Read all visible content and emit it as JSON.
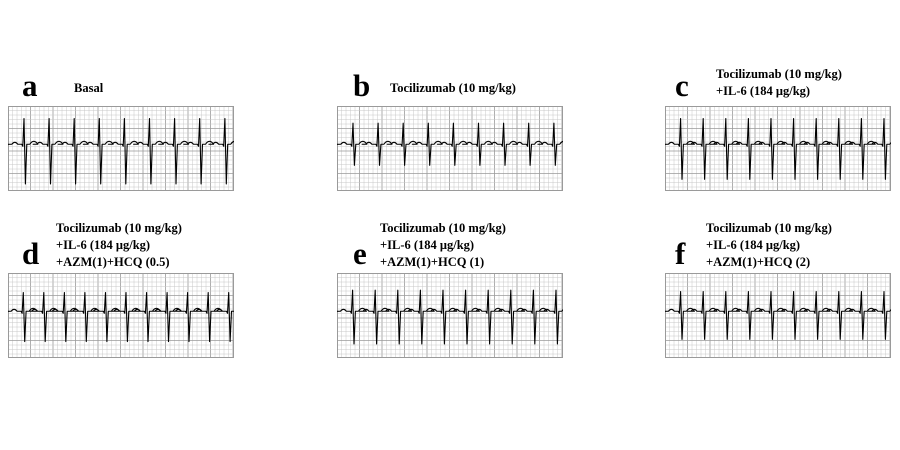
{
  "panels": [
    {
      "letter": "a",
      "caption": [
        "Basal"
      ]
    },
    {
      "letter": "b",
      "caption": [
        "Tocilizumab (10 mg/kg)"
      ]
    },
    {
      "letter": "c",
      "caption": [
        "Tocilizumab (10 mg/kg)",
        "+IL-6 (184 μg/kg)"
      ]
    },
    {
      "letter": "d",
      "caption": [
        "Tocilizumab (10 mg/kg)",
        "+IL-6 (184 μg/kg)",
        "+AZM(1)+HCQ (0.5)"
      ]
    },
    {
      "letter": "e",
      "caption": [
        "Tocilizumab (10 mg/kg)",
        "+IL-6 (184 μg/kg)",
        "+AZM(1)+HCQ (1)"
      ]
    },
    {
      "letter": "f",
      "caption": [
        "Tocilizumab (10 mg/kg)",
        "+IL-6 (184 μg/kg)",
        "+AZM(1)+HCQ (2)"
      ]
    }
  ],
  "ecg": [
    {
      "beats": 9,
      "r_amp": 0.55,
      "s_amp": 0.85
    },
    {
      "beats": 9,
      "r_amp": 0.45,
      "s_amp": 0.45
    },
    {
      "beats": 10,
      "r_amp": 0.55,
      "s_amp": 0.75
    },
    {
      "beats": 11,
      "r_amp": 0.4,
      "s_amp": 0.65
    },
    {
      "beats": 10,
      "r_amp": 0.45,
      "s_amp": 0.7
    },
    {
      "beats": 10,
      "r_amp": 0.42,
      "s_amp": 0.6
    }
  ],
  "colors": {
    "grid_minor": "#c8c8c8",
    "grid_major": "#9a9a9a",
    "trace": "#000000"
  }
}
